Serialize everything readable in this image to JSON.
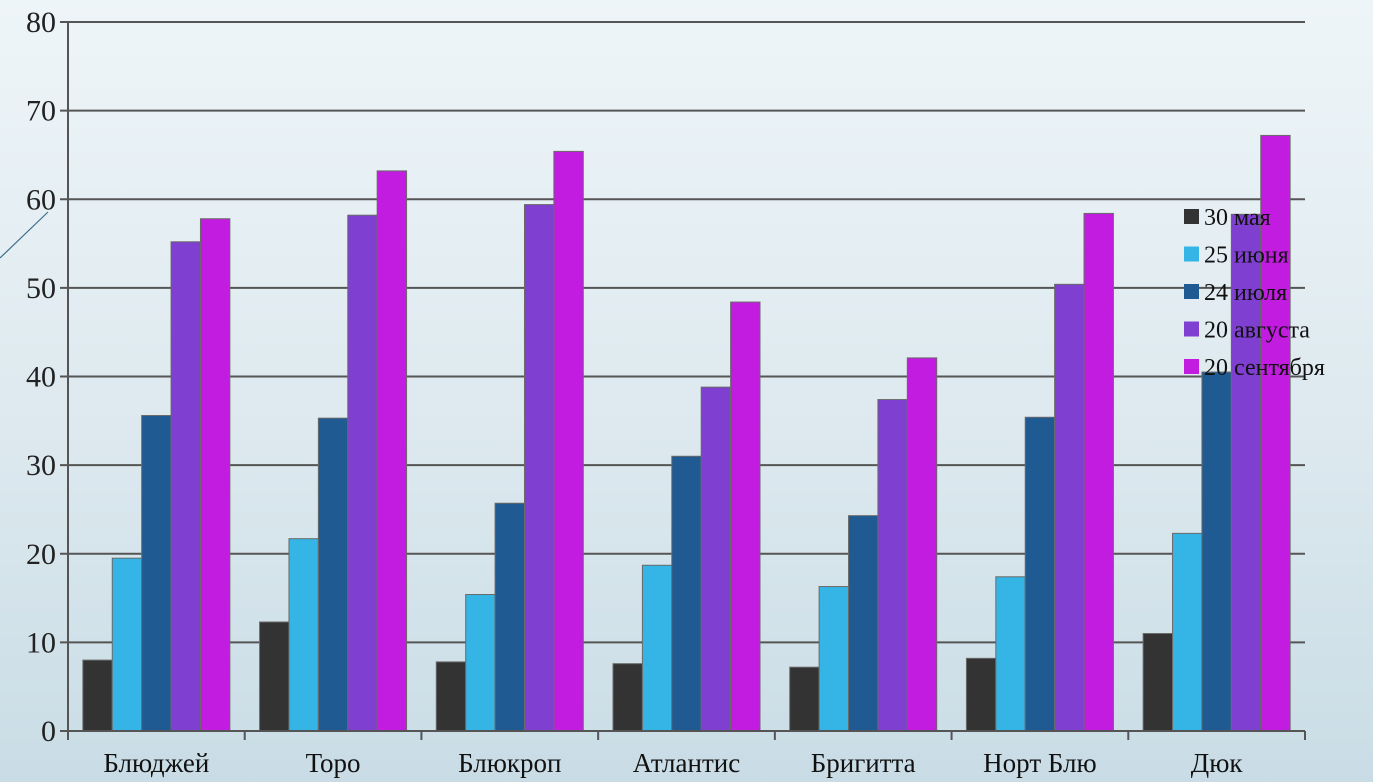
{
  "chart_data": {
    "type": "bar",
    "categories": [
      "Блюджей",
      "Торо",
      "Блюкроп",
      "Атлантис",
      "Бригитта",
      "Норт Блю",
      "Дюк"
    ],
    "series": [
      {
        "name": "30 мая",
        "color": "#333333",
        "values": [
          8,
          12.3,
          7.8,
          7.6,
          7.2,
          8.2,
          11
        ]
      },
      {
        "name": "25 июня",
        "color": "#35b5e6",
        "values": [
          19.5,
          21.7,
          15.4,
          18.7,
          16.3,
          17.4,
          22.3
        ]
      },
      {
        "name": "24 июля",
        "color": "#1f5a93",
        "values": [
          35.6,
          35.3,
          25.7,
          31,
          24.3,
          35.4,
          40.5
        ]
      },
      {
        "name": "20 августа",
        "color": "#7f3fd0",
        "values": [
          55.2,
          58.2,
          59.4,
          38.8,
          37.4,
          50.4,
          58.3
        ]
      },
      {
        "name": "20 сентября",
        "color": "#c11ce0",
        "values": [
          57.8,
          63.2,
          65.4,
          48.4,
          42.1,
          58.4,
          67.2
        ]
      }
    ],
    "ylim": [
      0,
      80
    ],
    "yticks": [
      0,
      10,
      20,
      30,
      40,
      50,
      60,
      70,
      80
    ],
    "title": "",
    "xlabel": "",
    "ylabel": "",
    "grid": true,
    "legend_position": "right"
  }
}
